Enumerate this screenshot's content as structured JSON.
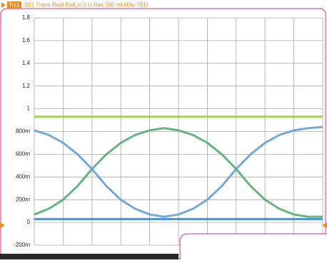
{
  "chart_data": {
    "type": "eye",
    "trace_label": "Trc1",
    "title": "S21 Trans Real RefLvl 0 U Res 200 mU/Div TED",
    "ylim": [
      -0.2,
      1.8
    ],
    "yticks": [
      1.8,
      1.6,
      1.4,
      1.2,
      1,
      {
        "value": 0.8,
        "label": "800m"
      },
      {
        "value": 0.6,
        "label": "600m"
      },
      {
        "value": 0.4,
        "label": "400m"
      },
      {
        "value": 0.2,
        "label": "200m"
      },
      0,
      {
        "value": -0.2,
        "label": "-200m"
      }
    ],
    "grid": true,
    "categories": [
      null,
      null,
      null,
      null,
      null,
      null,
      null,
      null,
      null,
      null,
      null,
      null,
      null,
      null,
      null,
      null,
      null,
      null,
      null,
      null,
      null
    ],
    "series": [
      {
        "color": "#8ccf3c",
        "values": [
          0.93,
          0.93,
          0.93,
          0.93,
          0.93,
          0.93,
          0.93,
          0.93,
          0.93,
          0.93,
          0.93,
          0.93,
          0.93,
          0.93,
          0.93,
          0.93,
          0.93,
          0.93,
          0.93,
          0.93,
          0.93
        ]
      },
      {
        "color": "#2f7fc8",
        "values": [
          0.03,
          0.03,
          0.03,
          0.03,
          0.03,
          0.03,
          0.03,
          0.03,
          0.03,
          0.03,
          0.03,
          0.03,
          0.03,
          0.03,
          0.03,
          0.03,
          0.03,
          0.03,
          0.03,
          0.03,
          0.03
        ]
      },
      {
        "color": "#4aa86a",
        "values": [
          0.07,
          0.12,
          0.2,
          0.32,
          0.47,
          0.6,
          0.7,
          0.77,
          0.81,
          0.83,
          0.81,
          0.77,
          0.7,
          0.6,
          0.47,
          0.32,
          0.2,
          0.12,
          0.07,
          0.05,
          0.05
        ]
      },
      {
        "color": "#5b9bd5",
        "values": [
          0.81,
          0.77,
          0.7,
          0.6,
          0.47,
          0.32,
          0.2,
          0.12,
          0.07,
          0.05,
          0.07,
          0.12,
          0.2,
          0.32,
          0.47,
          0.6,
          0.7,
          0.77,
          0.81,
          0.83,
          0.84
        ]
      }
    ]
  }
}
